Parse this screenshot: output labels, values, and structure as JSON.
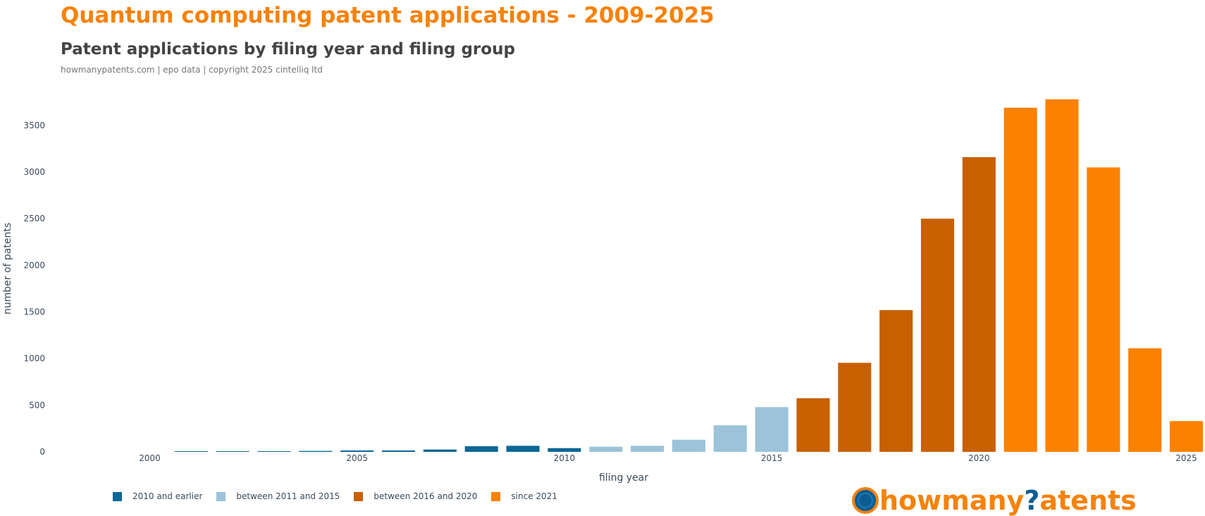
{
  "header": {
    "title": "Quantum computing patent applications - 2009-2025",
    "subtitle": "Patent applications by filing year and filing group",
    "source": "howmanypatents.com | epo data | copyright 2025 cintelliq ltd"
  },
  "colors": {
    "2010 and earlier": "#0d6797",
    "between 2011 and 2015": "#9cc3d9",
    "between 2016 and 2020": "#c86000",
    "since 2021": "#fb8101"
  },
  "logo": {
    "prefix": "howmany",
    "q": "?",
    "suffix": "atents",
    "icon": "globe-icon"
  },
  "chart_data": {
    "type": "bar",
    "xlabel": "filing year",
    "ylabel": "number of patents",
    "xlim": [
      1997.85,
      2025.45
    ],
    "ylim": [
      0,
      3900
    ],
    "x_ticks": [
      2000,
      2005,
      2010,
      2015,
      2020,
      2025
    ],
    "y_ticks": [
      0,
      500,
      1000,
      1500,
      2000,
      2500,
      3000,
      3500
    ],
    "grid": false,
    "legend_position": "bottom-left",
    "series": [
      {
        "name": "2010 and earlier",
        "x": [
          2001,
          2002,
          2003,
          2004,
          2005,
          2006,
          2007,
          2008,
          2009,
          2010
        ],
        "values": [
          1,
          1,
          3,
          10,
          15,
          15,
          25,
          60,
          65,
          40
        ]
      },
      {
        "name": "between 2011 and 2015",
        "x": [
          2011,
          2012,
          2013,
          2014,
          2015
        ],
        "values": [
          55,
          65,
          130,
          285,
          480
        ]
      },
      {
        "name": "between 2016 and 2020",
        "x": [
          2016,
          2017,
          2018,
          2019,
          2020
        ],
        "values": [
          575,
          955,
          1520,
          2500,
          3160
        ]
      },
      {
        "name": "since 2021",
        "x": [
          2021,
          2022,
          2023,
          2024,
          2025
        ],
        "values": [
          3690,
          3780,
          3050,
          1110,
          330
        ]
      }
    ]
  }
}
